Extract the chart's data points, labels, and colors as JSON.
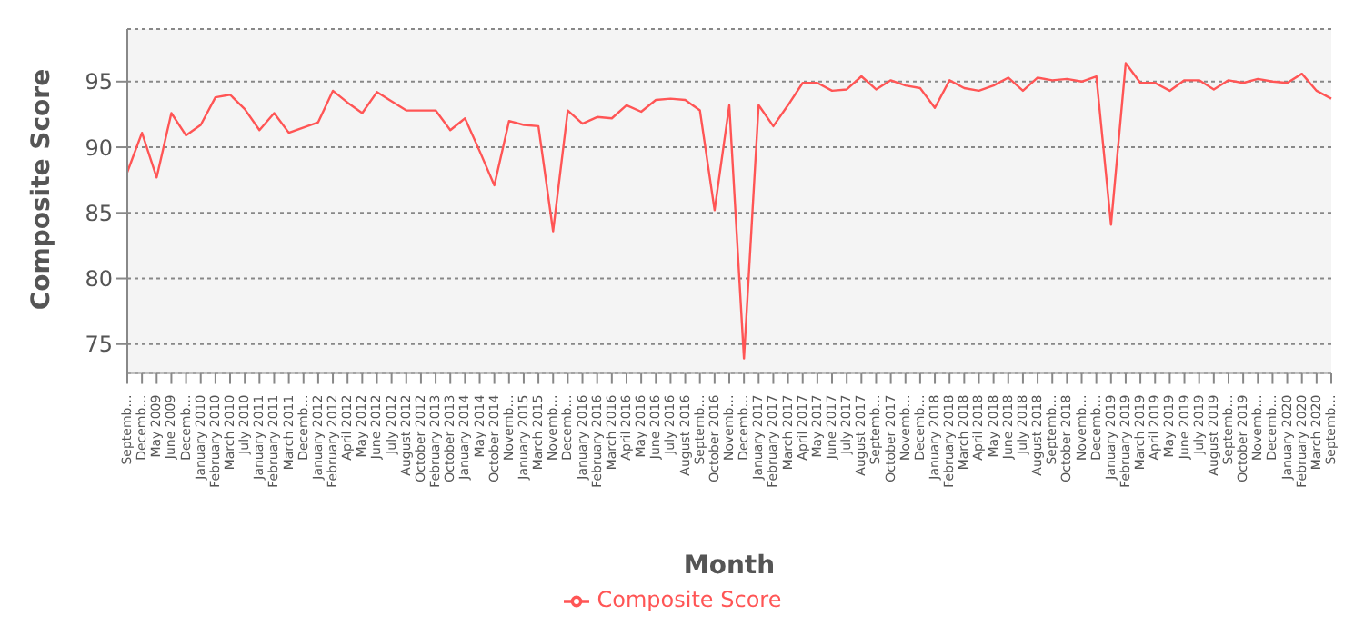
{
  "chart_data": {
    "type": "line",
    "xlabel": "Month",
    "ylabel": "Composite Score",
    "categories": [
      "Septemb…",
      "Decemb…",
      "May 2009",
      "June 2009",
      "Decemb…",
      "January 2010",
      "February 2010",
      "March 2010",
      "July 2010",
      "January 2011",
      "February 2011",
      "March 2011",
      "Decemb…",
      "January 2012",
      "February 2012",
      "April 2012",
      "May 2012",
      "June 2012",
      "July 2012",
      "August 2012",
      "October 2012",
      "February 2013",
      "October 2013",
      "January 2014",
      "May 2014",
      "October 2014",
      "Novemb…",
      "January 2015",
      "March 2015",
      "Novemb…",
      "Decemb…",
      "January 2016",
      "February 2016",
      "March 2016",
      "April 2016",
      "May 2016",
      "June 2016",
      "July 2016",
      "August 2016",
      "Septemb…",
      "October 2016",
      "Novemb…",
      "Decemb…",
      "January 2017",
      "February 2017",
      "March 2017",
      "April 2017",
      "May 2017",
      "June 2017",
      "July 2017",
      "August 2017",
      "Septemb…",
      "October 2017",
      "Novemb…",
      "Decemb…",
      "January 2018",
      "February 2018",
      "March 2018",
      "April 2018",
      "May 2018",
      "June 2018",
      "July 2018",
      "August 2018",
      "Septemb…",
      "October 2018",
      "Novemb…",
      "Decemb…",
      "January 2019",
      "February 2019",
      "March 2019",
      "April 2019",
      "May 2019",
      "June 2019",
      "July 2019",
      "August 2019",
      "Septemb…",
      "October 2019",
      "Novemb…",
      "Decemb…",
      "January 2020",
      "February 2020",
      "March 2020",
      "Septemb…"
    ],
    "series": [
      {
        "name": "Composite Score",
        "color": "#ff5555",
        "values": [
          88.1,
          91.1,
          87.7,
          92.6,
          90.9,
          91.7,
          93.8,
          94.0,
          92.9,
          91.3,
          92.6,
          91.1,
          91.5,
          91.9,
          94.3,
          93.4,
          92.6,
          94.2,
          93.5,
          92.8,
          92.8,
          92.8,
          91.3,
          92.2,
          89.7,
          87.1,
          92.0,
          91.7,
          91.6,
          83.6,
          92.8,
          91.8,
          92.3,
          92.2,
          93.2,
          92.7,
          93.6,
          93.7,
          93.6,
          92.8,
          85.2,
          93.2,
          73.9,
          93.2,
          91.6,
          93.2,
          94.9,
          94.9,
          94.3,
          94.4,
          95.4,
          94.4,
          95.1,
          94.7,
          94.5,
          93.0,
          95.1,
          94.5,
          94.3,
          94.7,
          95.3,
          94.3,
          95.3,
          95.1,
          95.2,
          95.0,
          95.4,
          84.1,
          96.4,
          94.9,
          94.9,
          94.3,
          95.1,
          95.1,
          94.4,
          95.1,
          94.9,
          95.2,
          95.0,
          94.9,
          95.6,
          94.3,
          93.7
        ]
      }
    ],
    "ylim": [
      72.8,
      99
    ],
    "yticks": [
      75,
      80,
      85,
      90,
      95
    ],
    "grid": "y",
    "legend": "bottom",
    "marker": "none",
    "line_style": "solid"
  }
}
